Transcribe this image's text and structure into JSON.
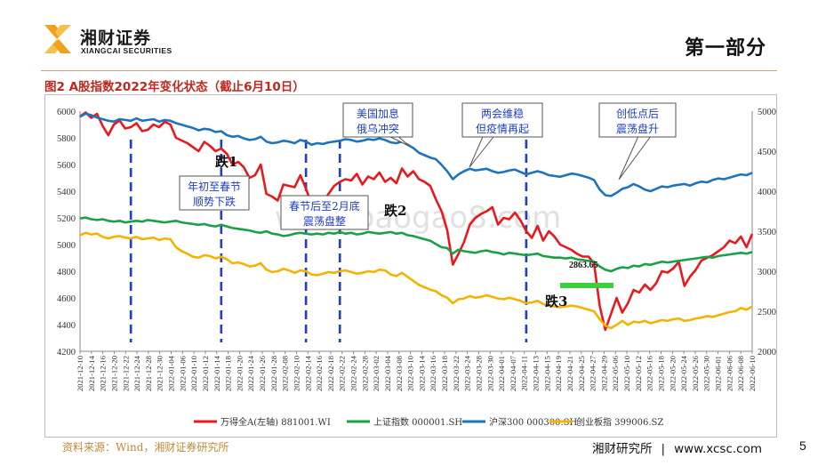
{
  "header": {
    "company_cn": "湘财证券",
    "company_en": "XIANGCAI SECURITIES",
    "section_title": "第一部分",
    "brand_color": "#f0a21e",
    "accent_color": "#c0281d"
  },
  "figure_title": "图2 A股指数2022年变化状态（截止6月10日）",
  "footer": {
    "source": "资料来源：Wind，湘财证券研究所",
    "institute": "湘财研究所",
    "separator": "|",
    "website": "www.xcsc.com",
    "page": "5"
  },
  "chart_data": {
    "type": "line",
    "title": "图2 A股指数2022年变化状态（截止6月10日）",
    "left_axis": {
      "min": 4200,
      "max": 6000,
      "ticks": [
        4200,
        4400,
        4600,
        4800,
        5000,
        5200,
        5400,
        5600,
        5800,
        6000
      ]
    },
    "right_axis": {
      "min": 2000,
      "max": 5000,
      "ticks": [
        2000,
        2500,
        3000,
        3500,
        4000,
        4500,
        5000
      ]
    },
    "x_tick_labels": [
      "2021-12-10",
      "2021-12-14",
      "2021-12-16",
      "2021-12-20",
      "2021-12-22",
      "2021-12-24",
      "2021-12-28",
      "2021-12-30",
      "2022-01-04",
      "2022-01-06",
      "2022-01-10",
      "2022-01-12",
      "2022-01-14",
      "2022-01-18",
      "2022-01-20",
      "2022-01-24",
      "2022-01-26",
      "2022-01-28",
      "2022-02-08",
      "2022-02-10",
      "2022-02-14",
      "2022-02-16",
      "2022-02-18",
      "2022-02-22",
      "2022-02-24",
      "2022-02-28",
      "2022-03-02",
      "2022-03-04",
      "2022-03-08",
      "2022-03-10",
      "2022-03-14",
      "2022-03-16",
      "2022-03-18",
      "2022-03-22",
      "2022-03-24",
      "2022-03-28",
      "2022-03-30",
      "2022-04-01",
      "2022-04-07",
      "2022-04-11",
      "2022-04-13",
      "2022-04-15",
      "2022-04-19",
      "2022-04-21",
      "2022-04-25",
      "2022-04-27",
      "2022-04-29",
      "2022-05-06",
      "2022-05-10",
      "2022-05-12",
      "2022-05-16",
      "2022-05-18",
      "2022-05-20",
      "2022-05-24",
      "2022-05-26",
      "2022-05-30",
      "2022-06-01",
      "2022-06-06",
      "2022-06-08",
      "2022-06-10"
    ],
    "series": [
      {
        "name": "万得全A(左轴) 881001.WI",
        "axis": "left",
        "color": "#e8191d",
        "values": [
          5960,
          5990,
          5950,
          5980,
          5890,
          5820,
          5900,
          5930,
          5870,
          5880,
          5910,
          5850,
          5860,
          5900,
          5880,
          5920,
          5900,
          5800,
          5780,
          5760,
          5730,
          5700,
          5770,
          5740,
          5700,
          5720,
          5680,
          5600,
          5620,
          5580,
          5500,
          5520,
          5600,
          5380,
          5360,
          5330,
          5450,
          5440,
          5430,
          5520,
          5420,
          5300,
          5330,
          5320,
          5380,
          5440,
          5470,
          5490,
          5480,
          5530,
          5450,
          5510,
          5490,
          5540,
          5470,
          5500,
          5460,
          5570,
          5510,
          5550,
          5490,
          5470,
          5440,
          5340,
          5250,
          5110,
          4850,
          4930,
          5020,
          5150,
          5200,
          5230,
          5250,
          5280,
          5150,
          5200,
          5190,
          5240,
          5180,
          5100,
          5050,
          5140,
          5030,
          5100,
          5060,
          5000,
          4980,
          4960,
          4930,
          4910,
          4910,
          4860,
          4540,
          4360,
          4480,
          4600,
          4490,
          4560,
          4660,
          4640,
          4700,
          4660,
          4710,
          4800,
          4790,
          4820,
          4870,
          4690,
          4760,
          4810,
          4880,
          4900,
          4920,
          4950,
          4980,
          5030,
          5010,
          5060,
          4980,
          5080
        ]
      },
      {
        "name": "上证指数 000001.SH",
        "axis": "right",
        "color": "#1aa046",
        "values": [
          3660,
          3670,
          3650,
          3640,
          3650,
          3630,
          3620,
          3630,
          3610,
          3620,
          3630,
          3620,
          3640,
          3630,
          3620,
          3610,
          3620,
          3630,
          3610,
          3600,
          3590,
          3580,
          3590,
          3570,
          3560,
          3580,
          3560,
          3540,
          3530,
          3520,
          3510,
          3490,
          3480,
          3500,
          3470,
          3460,
          3440,
          3450,
          3470,
          3480,
          3470,
          3460,
          3470,
          3460,
          3480,
          3470,
          3490,
          3470,
          3480,
          3460,
          3470,
          3490,
          3480,
          3470,
          3480,
          3490,
          3470,
          3480,
          3450,
          3440,
          3420,
          3400,
          3380,
          3340,
          3300,
          3290,
          3220,
          3270,
          3250,
          3240,
          3230,
          3250,
          3260,
          3240,
          3230,
          3210,
          3230,
          3220,
          3210,
          3200,
          3210,
          3220,
          3190,
          3180,
          3170,
          3170,
          3160,
          3170,
          3150,
          3140,
          3130,
          3120,
          3060,
          3020,
          3000,
          3030,
          3050,
          3040,
          3070,
          3060,
          3090,
          3080,
          3100,
          3120,
          3110,
          3120,
          3130,
          3140,
          3150,
          3160,
          3170,
          3180,
          3170,
          3190,
          3200,
          3210,
          3220,
          3230,
          3220,
          3240
        ]
      },
      {
        "name": "沪深300 000300.SH",
        "axis": "right",
        "color": "#1e73be",
        "values": [
          4930,
          4970,
          4950,
          4920,
          4900,
          4880,
          4870,
          4900,
          4890,
          4880,
          4910,
          4880,
          4890,
          4900,
          4870,
          4890,
          4880,
          4850,
          4830,
          4810,
          4790,
          4760,
          4780,
          4770,
          4740,
          4750,
          4700,
          4680,
          4690,
          4660,
          4640,
          4650,
          4680,
          4620,
          4600,
          4610,
          4630,
          4620,
          4600,
          4640,
          4620,
          4580,
          4600,
          4590,
          4610,
          4620,
          4630,
          4650,
          4640,
          4620,
          4630,
          4650,
          4640,
          4660,
          4640,
          4610,
          4600,
          4620,
          4580,
          4540,
          4480,
          4450,
          4420,
          4400,
          4330,
          4250,
          4150,
          4210,
          4250,
          4280,
          4260,
          4270,
          4280,
          4250,
          4230,
          4240,
          4260,
          4270,
          4240,
          4210,
          4230,
          4250,
          4230,
          4200,
          4190,
          4180,
          4200,
          4220,
          4210,
          4190,
          4170,
          4140,
          4020,
          3950,
          3940,
          3980,
          4030,
          4050,
          4090,
          4060,
          4020,
          4000,
          4030,
          4060,
          4050,
          4070,
          4080,
          4090,
          4070,
          4100,
          4120,
          4110,
          4140,
          4160,
          4150,
          4170,
          4190,
          4210,
          4200,
          4230
        ]
      },
      {
        "name": "创业板指 399006.SZ",
        "axis": "right",
        "color": "#f3b300",
        "values": [
          3450,
          3480,
          3460,
          3470,
          3430,
          3410,
          3430,
          3440,
          3420,
          3410,
          3430,
          3400,
          3410,
          3420,
          3390,
          3410,
          3400,
          3300,
          3250,
          3220,
          3180,
          3170,
          3200,
          3190,
          3160,
          3180,
          3150,
          3100,
          3110,
          3090,
          3060,
          3070,
          3100,
          3020,
          2990,
          3000,
          3030,
          3010,
          2980,
          3010,
          3000,
          2960,
          2950,
          2970,
          2990,
          2980,
          3000,
          3010,
          2990,
          2970,
          2980,
          3000,
          2990,
          3020,
          3010,
          2960,
          2940,
          2980,
          2930,
          2880,
          2830,
          2800,
          2770,
          2750,
          2700,
          2670,
          2600,
          2650,
          2660,
          2690,
          2670,
          2680,
          2700,
          2680,
          2660,
          2650,
          2670,
          2650,
          2630,
          2600,
          2610,
          2630,
          2590,
          2570,
          2560,
          2550,
          2560,
          2570,
          2560,
          2540,
          2520,
          2500,
          2400,
          2320,
          2290,
          2330,
          2380,
          2330,
          2370,
          2360,
          2380,
          2350,
          2370,
          2390,
          2380,
          2400,
          2410,
          2380,
          2390,
          2410,
          2420,
          2440,
          2430,
          2450,
          2470,
          2490,
          2500,
          2540,
          2520,
          2560
        ]
      }
    ],
    "event_lines": [
      9,
      25,
      40,
      46,
      79
    ],
    "annotations": {
      "drop1": "跌1",
      "drop2": "跌2",
      "drop3": "跌3",
      "low_value": "2863.65",
      "box1": [
        "年初至春节",
        "顺势下跌"
      ],
      "box2": [
        "春节后至2月底",
        "震荡盘整"
      ],
      "box3": [
        "美国加息",
        "俄乌冲突"
      ],
      "box4": [
        "两会维稳",
        "但疫情再起"
      ],
      "box5": [
        "创低点后",
        "震荡盘升"
      ],
      "watermark": "www.baogao8.com"
    }
  }
}
